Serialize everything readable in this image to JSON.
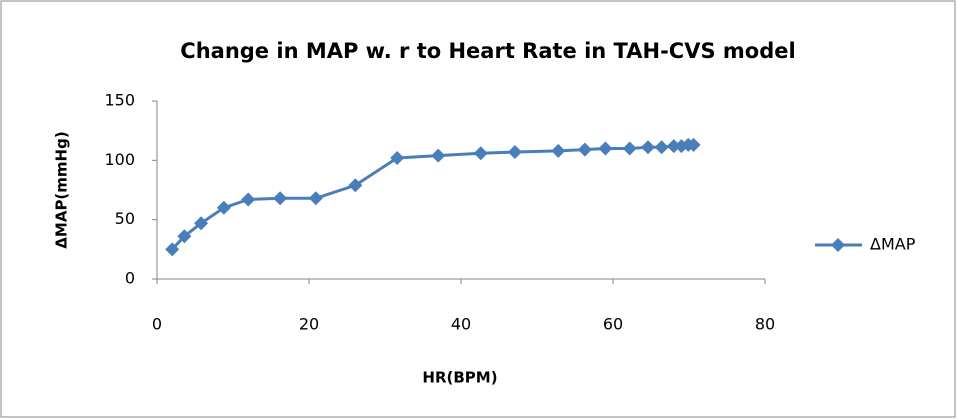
{
  "chart_data": {
    "type": "line",
    "title": "Change in MAP w. r to Heart Rate in TAH-CVS model",
    "x_label": "HR(BPM)",
    "y_label": "ΔMAP(mmHg)",
    "x": [
      2,
      3.6,
      5.8,
      8.8,
      12,
      16.2,
      20.9,
      26.1,
      31.6,
      37,
      42.6,
      47.1,
      52.8,
      56.3,
      59,
      62.2,
      64.6,
      66.4,
      68,
      69,
      69.9,
      70.6
    ],
    "series": [
      {
        "name": "ΔMAP",
        "color": "#4a7ebb",
        "values": [
          25,
          36,
          47,
          60,
          67,
          68,
          68,
          79,
          102,
          104,
          106,
          107,
          108,
          109,
          110,
          110,
          111,
          111,
          112,
          112,
          113,
          113
        ]
      }
    ],
    "xlim": [
      0,
      80
    ],
    "xticks": [
      0,
      20,
      40,
      60,
      80
    ],
    "ylim": [
      0,
      150
    ],
    "yticks": [
      0,
      50,
      100,
      150
    ],
    "grid": false,
    "legend": "right"
  }
}
